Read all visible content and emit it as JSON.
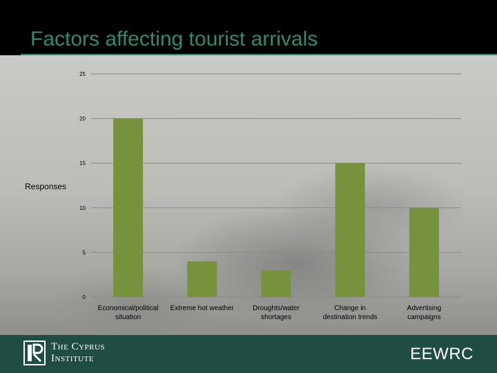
{
  "slide": {
    "title": "Factors affecting tourist arrivals"
  },
  "colors": {
    "title": "#2f8a70",
    "bar": "#76923c",
    "footer": "#1f4d43"
  },
  "footer": {
    "institute_logo_text": "The Cyprus\nInstitute",
    "eewrc_label": "EEWRC"
  },
  "chart_data": {
    "type": "bar",
    "title": "",
    "xlabel": "",
    "ylabel": "Responses",
    "categories": [
      [
        "Economical/political",
        "situation"
      ],
      [
        "Extreme hot weather"
      ],
      [
        "Droughts/water",
        "shortages"
      ],
      [
        "Change in",
        "destination trends"
      ],
      [
        "Advertising",
        "campaigns"
      ]
    ],
    "values": [
      20,
      4,
      3,
      15,
      10
    ],
    "ylim": [
      0,
      25
    ],
    "yticks": [
      0,
      5,
      10,
      15,
      20,
      25
    ],
    "grid": true,
    "legend": "none"
  }
}
